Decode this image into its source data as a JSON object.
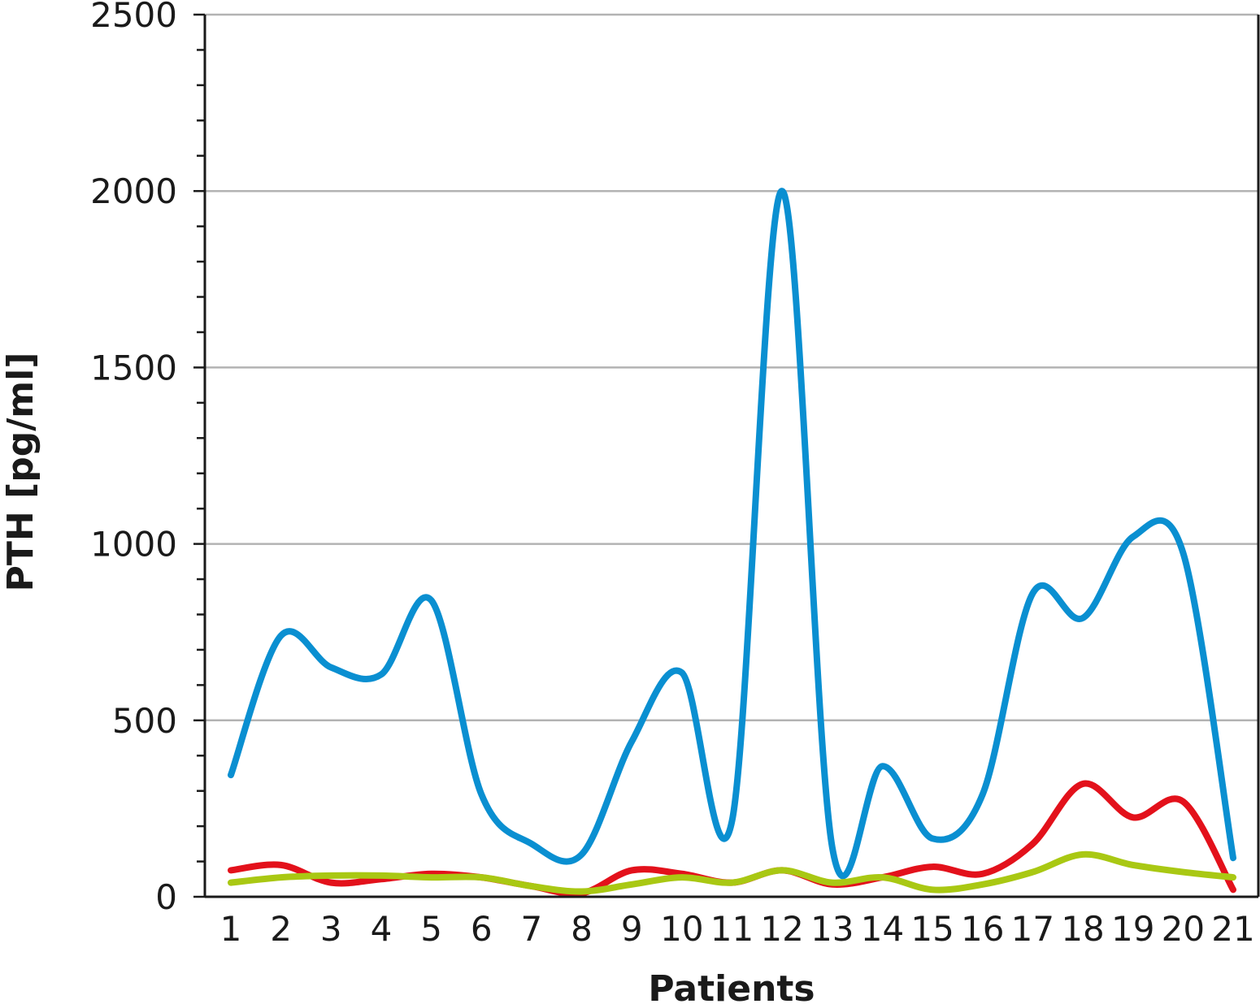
{
  "chart_data": {
    "type": "line",
    "title": "",
    "xlabel": "Patients",
    "ylabel": "PTH [pg/ml]",
    "categories": [
      "1",
      "2",
      "3",
      "4",
      "5",
      "6",
      "7",
      "8",
      "9",
      "10",
      "11",
      "12",
      "13",
      "14",
      "15",
      "16",
      "17",
      "18",
      "19",
      "20",
      "21"
    ],
    "ylim": [
      0,
      2500
    ],
    "yticks": [
      0,
      500,
      1000,
      1500,
      2000,
      2500
    ],
    "yminor_step": 100,
    "grid": "horizontal at major ticks",
    "legend": "none",
    "series": [
      {
        "color": "#0a8fd1",
        "values": [
          345,
          740,
          650,
          630,
          840,
          290,
          150,
          120,
          440,
          635,
          215,
          2000,
          140,
          370,
          165,
          290,
          860,
          790,
          1020,
          975,
          110
        ]
      },
      {
        "color": "#e3111b",
        "values": [
          75,
          90,
          40,
          50,
          65,
          55,
          30,
          10,
          75,
          65,
          40,
          75,
          35,
          55,
          85,
          65,
          150,
          320,
          225,
          270,
          20
        ]
      },
      {
        "color": "#a9c813",
        "values": [
          40,
          55,
          60,
          60,
          55,
          55,
          30,
          15,
          35,
          55,
          40,
          75,
          40,
          55,
          20,
          35,
          70,
          120,
          90,
          70,
          55
        ]
      }
    ]
  }
}
